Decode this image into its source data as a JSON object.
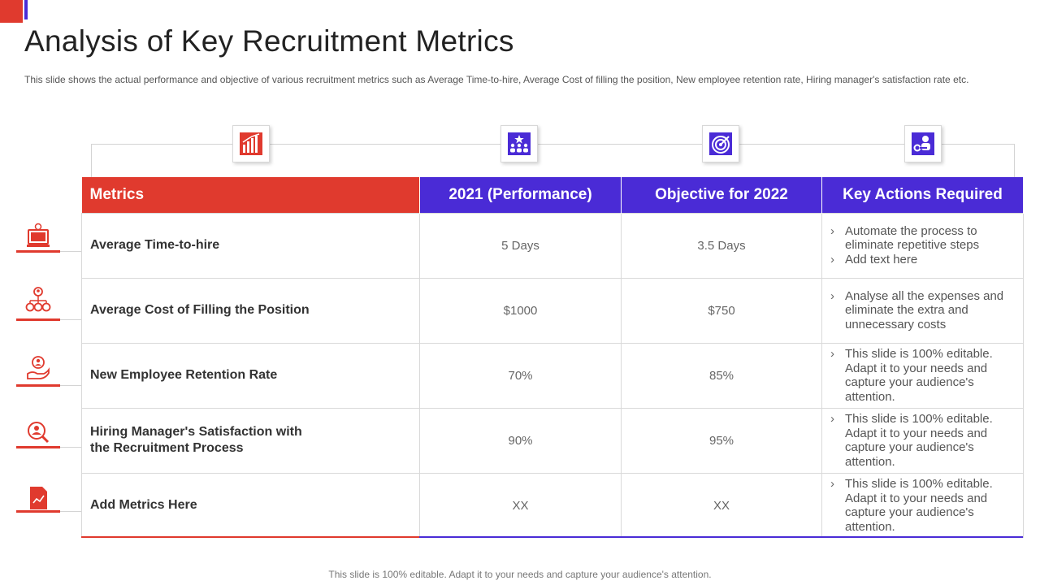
{
  "slide": {
    "title": "Analysis of Key Recruitment Metrics",
    "subtitle": "This slide shows the actual performance  and objective of various recruitment metrics such as Average Time-to-hire,  Average  Cost of filling the position, New employee retention rate, Hiring manager's satisfaction rate etc.",
    "footer": "This slide is 100% editable. Adapt it to your needs and capture your audience's attention."
  },
  "colors": {
    "red": "#e03a2e",
    "blue": "#4a2bd6"
  },
  "header_icons": [
    "bar-chart-icon",
    "team-star-icon",
    "target-icon",
    "key-person-icon"
  ],
  "table": {
    "headers": [
      "Metrics",
      "2021 (Performance)",
      "Objective for 2022",
      "Key Actions Required"
    ],
    "rows": [
      {
        "icon": "computer-clock-icon",
        "metric": "Average Time-to-hire",
        "performance": "5 Days",
        "objective": "3.5 Days",
        "actions": [
          "Automate the process to eliminate repetitive steps",
          "Add text here"
        ]
      },
      {
        "icon": "hierarchy-icon",
        "metric": "Average Cost  of Filling the Position",
        "performance": "$1000",
        "objective": "$750",
        "actions": [
          "Analyse all the expenses and eliminate the extra and unnecessary costs"
        ]
      },
      {
        "icon": "hand-person-icon",
        "metric": "New Employee Retention Rate",
        "performance": "70%",
        "objective": "85%",
        "actions": [
          "This slide is 100% editable. Adapt it to your needs and capture your audience's attention."
        ]
      },
      {
        "icon": "person-search-icon",
        "metric": "Hiring Manager's Satisfaction  with the Recruitment Process",
        "performance": "90%",
        "objective": "95%",
        "actions": [
          "This slide is 100% editable. Adapt it to your needs and capture your audience's attention."
        ]
      },
      {
        "icon": "document-chart-icon",
        "metric": "Add Metrics  Here",
        "performance": "XX",
        "objective": "XX",
        "actions": [
          "This slide is 100% editable. Adapt it to your needs and capture your audience's attention."
        ]
      }
    ]
  }
}
